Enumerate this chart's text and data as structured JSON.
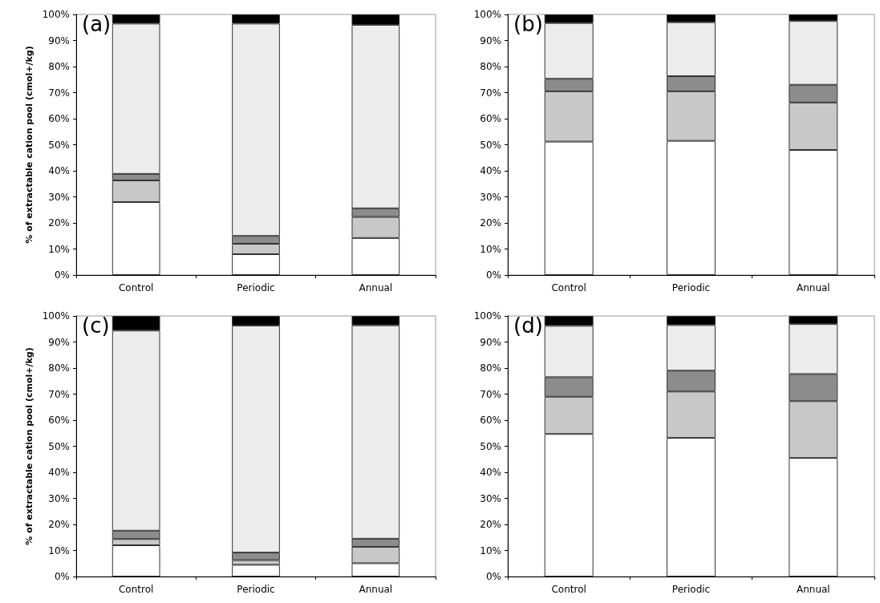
{
  "chart_data": [
    {
      "type": "bar",
      "title": "(a)",
      "ylabel": "% of extractable cation pool (cmol+/kg)",
      "stacked": true,
      "grid": false,
      "categories": [
        "Control",
        "Periodic",
        "Annual"
      ],
      "ylim": [
        0,
        100
      ],
      "yticks": [
        {
          "value": 0,
          "label": "0%"
        },
        {
          "value": 10,
          "label": "10%"
        },
        {
          "value": 20,
          "label": "20%"
        },
        {
          "value": 30,
          "label": "30%"
        },
        {
          "value": 40,
          "label": "40%"
        },
        {
          "value": 50,
          "label": "50%"
        },
        {
          "value": 60,
          "label": "60%"
        },
        {
          "value": 70,
          "label": "70%"
        },
        {
          "value": 80,
          "label": "80%"
        },
        {
          "value": 90,
          "label": "90%"
        },
        {
          "value": 100,
          "label": "100%"
        }
      ],
      "series": [
        {
          "color": "#ffffff",
          "values": [
            28,
            8,
            14.2
          ]
        },
        {
          "color": "#c8c8c8",
          "values": [
            8.3,
            4,
            8.1
          ]
        },
        {
          "color": "#8c8c8c",
          "values": [
            2.5,
            3,
            3.3
          ]
        },
        {
          "color": "#ececec",
          "values": [
            57.7,
            81.5,
            70.4
          ]
        },
        {
          "color": "#000000",
          "values": [
            3.5,
            3.5,
            4
          ]
        }
      ]
    },
    {
      "type": "bar",
      "title": "(b)",
      "stacked": true,
      "grid": false,
      "categories": [
        "Control",
        "Periodic",
        "Annual"
      ],
      "ylim": [
        0,
        100
      ],
      "yticks": [
        {
          "value": 0,
          "label": "0%"
        },
        {
          "value": 10,
          "label": "10%"
        },
        {
          "value": 20,
          "label": "20%"
        },
        {
          "value": 30,
          "label": "30%"
        },
        {
          "value": 40,
          "label": "40%"
        },
        {
          "value": 50,
          "label": "50%"
        },
        {
          "value": 60,
          "label": "60%"
        },
        {
          "value": 70,
          "label": "70%"
        },
        {
          "value": 80,
          "label": "80%"
        },
        {
          "value": 90,
          "label": "90%"
        },
        {
          "value": 100,
          "label": "100%"
        }
      ],
      "series": [
        {
          "color": "#ffffff",
          "values": [
            51.2,
            51.5,
            48
          ]
        },
        {
          "color": "#c8c8c8",
          "values": [
            19.3,
            19,
            18.2
          ]
        },
        {
          "color": "#8c8c8c",
          "values": [
            4.8,
            5.8,
            6.8
          ]
        },
        {
          "color": "#ececec",
          "values": [
            21.4,
            20.7,
            24.5
          ]
        },
        {
          "color": "#000000",
          "values": [
            3.3,
            3,
            2.5
          ]
        }
      ]
    },
    {
      "type": "bar",
      "title": "(c)",
      "ylabel": "% of extractable cation pool (cmol+/kg)",
      "stacked": true,
      "grid": false,
      "categories": [
        "Control",
        "Periodic",
        "Annual"
      ],
      "ylim": [
        0,
        100
      ],
      "yticks": [
        {
          "value": 0,
          "label": "0%"
        },
        {
          "value": 10,
          "label": "10%"
        },
        {
          "value": 20,
          "label": "20%"
        },
        {
          "value": 30,
          "label": "30%"
        },
        {
          "value": 40,
          "label": "40%"
        },
        {
          "value": 50,
          "label": "50%"
        },
        {
          "value": 60,
          "label": "60%"
        },
        {
          "value": 70,
          "label": "70%"
        },
        {
          "value": 80,
          "label": "80%"
        },
        {
          "value": 90,
          "label": "90%"
        },
        {
          "value": 100,
          "label": "100%"
        }
      ],
      "series": [
        {
          "color": "#ffffff",
          "values": [
            12,
            4.5,
            5.1
          ]
        },
        {
          "color": "#c8c8c8",
          "values": [
            2.4,
            1.8,
            6.3
          ]
        },
        {
          "color": "#8c8c8c",
          "values": [
            3.2,
            2.9,
            3.1
          ]
        },
        {
          "color": "#ececec",
          "values": [
            76.8,
            87.1,
            81.9
          ]
        },
        {
          "color": "#000000",
          "values": [
            5.6,
            3.7,
            3.6
          ]
        }
      ]
    },
    {
      "type": "bar",
      "title": "(d)",
      "stacked": true,
      "grid": false,
      "categories": [
        "Control",
        "Periodic",
        "Annual"
      ],
      "ylim": [
        0,
        100
      ],
      "yticks": [
        {
          "value": 0,
          "label": "0%"
        },
        {
          "value": 10,
          "label": "10%"
        },
        {
          "value": 20,
          "label": "20%"
        },
        {
          "value": 30,
          "label": "30%"
        },
        {
          "value": 40,
          "label": "40%"
        },
        {
          "value": 50,
          "label": "50%"
        },
        {
          "value": 60,
          "label": "60%"
        },
        {
          "value": 70,
          "label": "70%"
        },
        {
          "value": 80,
          "label": "80%"
        },
        {
          "value": 90,
          "label": "90%"
        },
        {
          "value": 100,
          "label": "100%"
        }
      ],
      "series": [
        {
          "color": "#ffffff",
          "values": [
            54.7,
            53.2,
            45.5
          ]
        },
        {
          "color": "#c8c8c8",
          "values": [
            14.3,
            17.8,
            21.8
          ]
        },
        {
          "color": "#8c8c8c",
          "values": [
            7.5,
            8,
            10.4
          ]
        },
        {
          "color": "#ececec",
          "values": [
            19.7,
            17.5,
            19.2
          ]
        },
        {
          "color": "#000000",
          "values": [
            3.8,
            3.5,
            3.1
          ]
        }
      ]
    }
  ]
}
